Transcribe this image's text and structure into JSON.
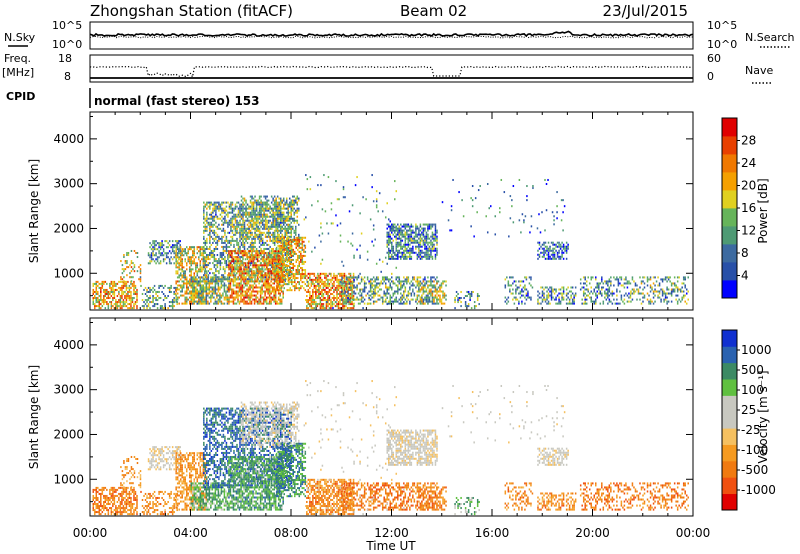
{
  "header": {
    "station": "Zhongshan Station (fitACF)",
    "beam": "Beam 02",
    "date": "23/Jul/2015"
  },
  "panels": {
    "nsky_label": "N.Sky",
    "nsky_ticks": [
      "10^5",
      "10^0"
    ],
    "nsearch_label": "N.Search",
    "nsearch_ticks": [
      "10^5",
      "10^0"
    ],
    "freq_label": "Freq.",
    "freq_unit": "[MHz]",
    "freq_ticks": [
      "18",
      "8"
    ],
    "nave_label": "Nave",
    "nave_ticks": [
      "60",
      "0"
    ],
    "cpid_label": "CPID",
    "cpid_text": "normal (fast stereo) 153"
  },
  "chart_data": [
    {
      "type": "heatmap",
      "name": "power",
      "ylabel": "Slant Range [km]",
      "xlabel": "",
      "colorbar_label": "Power [dB]",
      "colorbar_ticks": [
        "4",
        "8",
        "12",
        "16",
        "20",
        "24",
        "28"
      ],
      "colorbar_colors": [
        "#0000ff",
        "#2850a8",
        "#3c6aa0",
        "#4e9a74",
        "#66b45a",
        "#e0d020",
        "#f5a000",
        "#f07800",
        "#e84000",
        "#e00000"
      ],
      "y_ticks": [
        "1000",
        "2000",
        "3000",
        "4000"
      ],
      "ylim": [
        180,
        4600
      ],
      "xlim": [
        0,
        24
      ],
      "x_ticks": [
        "00:00",
        "04:00",
        "08:00",
        "12:00",
        "16:00",
        "20:00",
        "00:00"
      ]
    },
    {
      "type": "heatmap",
      "name": "velocity",
      "ylabel": "Slant Range [km]",
      "xlabel": "Time UT",
      "colorbar_label": "Velocity [m s⁻¹]",
      "colorbar_ticks": [
        "-1000",
        "-500",
        "-100",
        "-25",
        "25",
        "100",
        "500",
        "1000"
      ],
      "colorbar_colors": [
        "#e00000",
        "#f05010",
        "#f07a10",
        "#f59a20",
        "#f5c060",
        "#c8c8c0",
        "#c8c8c0",
        "#60c040",
        "#3c8a64",
        "#2a62b0",
        "#1030d0"
      ],
      "y_ticks": [
        "1000",
        "2000",
        "3000",
        "4000"
      ],
      "ylim": [
        180,
        4600
      ],
      "xlim": [
        0,
        24
      ],
      "x_ticks": [
        "00:00",
        "04:00",
        "08:00",
        "12:00",
        "16:00",
        "20:00",
        "00:00"
      ]
    }
  ]
}
